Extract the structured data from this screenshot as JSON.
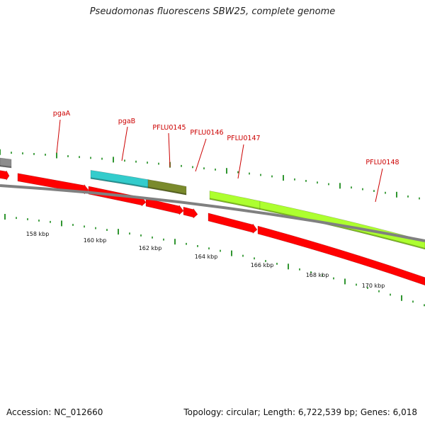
{
  "title": "Pseudomonas fluorescens SBW25, complete genome",
  "footer": {
    "accession": "Accession: NC_012660",
    "summary": "Topology: circular; Length: 6,722,539 bp; Genes: 6,018"
  },
  "colors": {
    "cds": "#ff0000",
    "backbone": "#808080",
    "tick": "#1a8a1a",
    "label": "#cc0000",
    "gene_pgaA": "#8c8c8c",
    "gene_pgaB": "#33cccc",
    "gene_PFLU0145": "#7a8a2c",
    "gene_PFLU0147": "#adff2f",
    "gene_PFLU0148": "#adff2f"
  },
  "scale": {
    "labels": [
      "158 kbp",
      "160 kbp",
      "162 kbp",
      "164 kbp",
      "166 kbp",
      "168 kbp",
      "170 kbp"
    ]
  },
  "gene_labels": [
    "pgaA",
    "pgaB",
    "PFLU0145",
    "PFLU0146",
    "PFLU0147",
    "PFLU0148"
  ]
}
